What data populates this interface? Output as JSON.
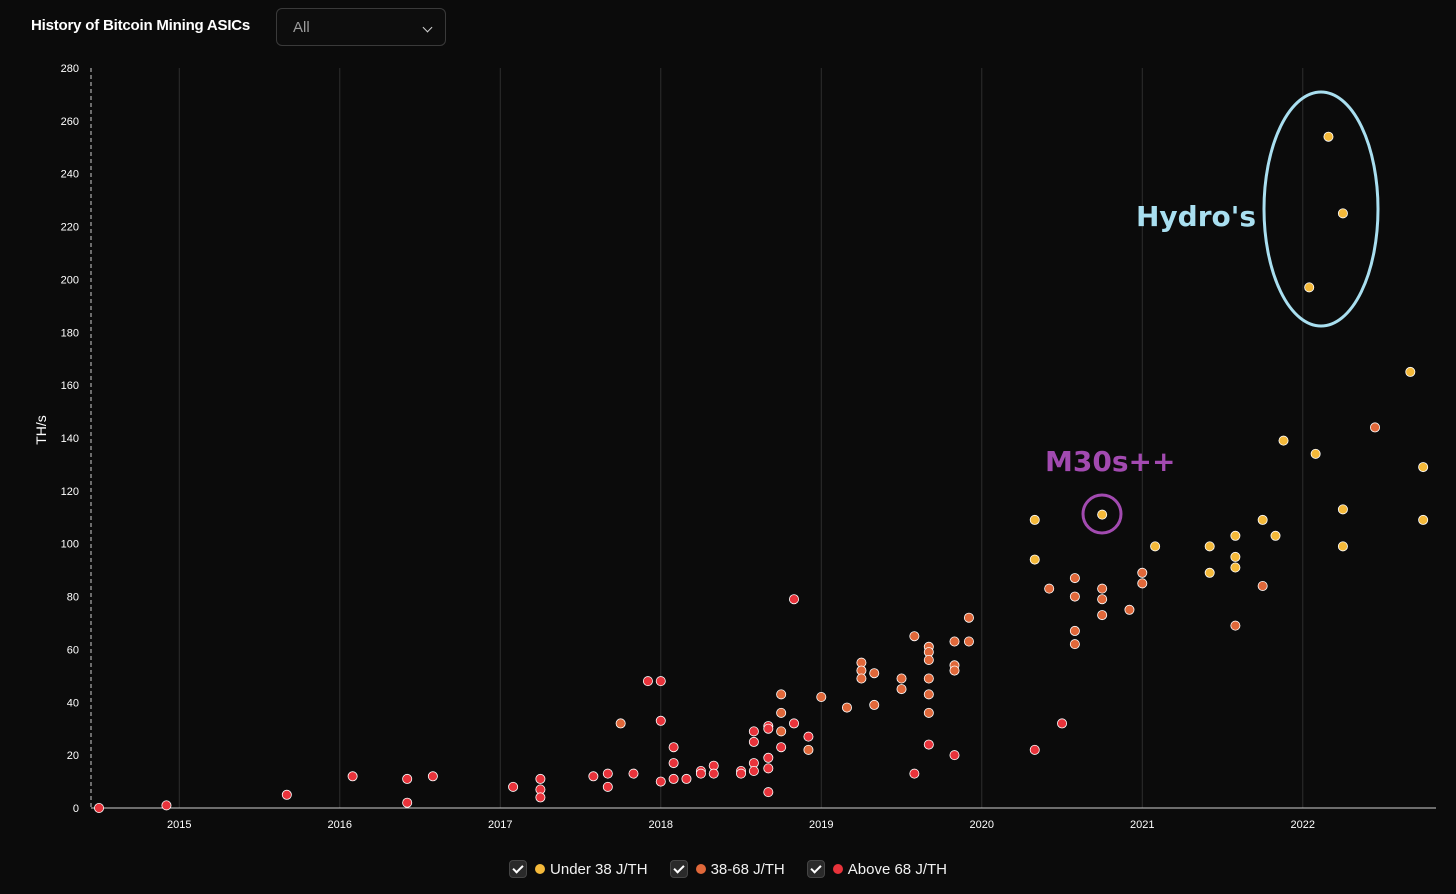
{
  "header": {
    "title": "History of Bitcoin Mining ASICs",
    "filter_value": "All"
  },
  "colors": {
    "background": "#0b0b0b",
    "under38": "#f4b93a",
    "mid": "#e0683a",
    "above68": "#e8333b",
    "hydro_annotation": "#a9dff0",
    "m30_annotation": "#a24ab0"
  },
  "annotations": {
    "hydro_label": "Hydro's",
    "m30_label": "M30s++"
  },
  "legend": {
    "items": [
      {
        "label": "Under 38 J/TH",
        "color": "#f4b93a",
        "checked": true
      },
      {
        "label": "38-68 J/TH",
        "color": "#e0683a",
        "checked": true
      },
      {
        "label": "Above 68 J/TH",
        "color": "#e8333b",
        "checked": true
      }
    ]
  },
  "chart_data": {
    "type": "scatter",
    "title": "History of Bitcoin Mining ASICs",
    "ylabel": "TH/s",
    "xlabel": "",
    "xlim": [
      2014.45,
      2022.83
    ],
    "ylim": [
      0,
      280
    ],
    "x_ticks": [
      2015,
      2016,
      2017,
      2018,
      2019,
      2020,
      2021,
      2022
    ],
    "y_ticks": [
      0,
      20,
      40,
      60,
      80,
      100,
      120,
      140,
      160,
      180,
      200,
      220,
      240,
      260,
      280
    ],
    "grid": "vertical",
    "legend_position": "bottom-center",
    "series": [
      {
        "name": "Under 38 J/TH",
        "color": "#f4b93a",
        "points": [
          [
            2020.33,
            109
          ],
          [
            2020.33,
            94
          ],
          [
            2020.75,
            111
          ],
          [
            2021.08,
            99
          ],
          [
            2021.42,
            99
          ],
          [
            2021.42,
            89
          ],
          [
            2021.58,
            103
          ],
          [
            2021.58,
            95
          ],
          [
            2021.58,
            91
          ],
          [
            2021.75,
            109
          ],
          [
            2021.83,
            103
          ],
          [
            2021.88,
            139
          ],
          [
            2022.08,
            134
          ],
          [
            2022.04,
            197
          ],
          [
            2022.16,
            254
          ],
          [
            2022.25,
            225
          ],
          [
            2022.25,
            113
          ],
          [
            2022.25,
            99
          ],
          [
            2022.67,
            165
          ],
          [
            2022.75,
            129
          ],
          [
            2022.75,
            109
          ]
        ]
      },
      {
        "name": "38-68 J/TH",
        "color": "#e0683a",
        "points": [
          [
            2017.75,
            32
          ],
          [
            2018.75,
            43
          ],
          [
            2018.75,
            36
          ],
          [
            2018.75,
            29
          ],
          [
            2018.92,
            22
          ],
          [
            2019.0,
            42
          ],
          [
            2019.16,
            38
          ],
          [
            2019.25,
            55
          ],
          [
            2019.25,
            52
          ],
          [
            2019.25,
            49
          ],
          [
            2019.33,
            51
          ],
          [
            2019.33,
            39
          ],
          [
            2019.5,
            49
          ],
          [
            2019.5,
            45
          ],
          [
            2019.58,
            65
          ],
          [
            2019.67,
            61
          ],
          [
            2019.67,
            59
          ],
          [
            2019.67,
            56
          ],
          [
            2019.67,
            49
          ],
          [
            2019.67,
            43
          ],
          [
            2019.67,
            36
          ],
          [
            2019.83,
            63
          ],
          [
            2019.83,
            54
          ],
          [
            2019.83,
            52
          ],
          [
            2019.92,
            72
          ],
          [
            2019.92,
            63
          ],
          [
            2020.42,
            83
          ],
          [
            2020.58,
            87
          ],
          [
            2020.58,
            80
          ],
          [
            2020.58,
            67
          ],
          [
            2020.58,
            62
          ],
          [
            2020.75,
            83
          ],
          [
            2020.75,
            79
          ],
          [
            2020.75,
            73
          ],
          [
            2020.92,
            75
          ],
          [
            2021.0,
            89
          ],
          [
            2021.0,
            85
          ],
          [
            2021.58,
            69
          ],
          [
            2021.75,
            84
          ],
          [
            2022.45,
            144
          ]
        ]
      },
      {
        "name": "Above 68 J/TH",
        "color": "#e8333b",
        "points": [
          [
            2014.5,
            0
          ],
          [
            2014.92,
            1
          ],
          [
            2015.67,
            5
          ],
          [
            2016.08,
            12
          ],
          [
            2016.42,
            11
          ],
          [
            2016.42,
            2
          ],
          [
            2016.58,
            12
          ],
          [
            2017.08,
            8
          ],
          [
            2017.25,
            11
          ],
          [
            2017.25,
            7
          ],
          [
            2017.25,
            4
          ],
          [
            2017.58,
            12
          ],
          [
            2017.67,
            13
          ],
          [
            2017.67,
            8
          ],
          [
            2017.83,
            13
          ],
          [
            2017.92,
            48
          ],
          [
            2018.0,
            48
          ],
          [
            2018.0,
            33
          ],
          [
            2018.0,
            10
          ],
          [
            2018.08,
            23
          ],
          [
            2018.08,
            17
          ],
          [
            2018.08,
            11
          ],
          [
            2018.16,
            11
          ],
          [
            2018.25,
            14
          ],
          [
            2018.25,
            13
          ],
          [
            2018.33,
            16
          ],
          [
            2018.33,
            13
          ],
          [
            2018.5,
            14
          ],
          [
            2018.5,
            13
          ],
          [
            2018.58,
            29
          ],
          [
            2018.58,
            25
          ],
          [
            2018.58,
            17
          ],
          [
            2018.58,
            14
          ],
          [
            2018.67,
            31
          ],
          [
            2018.67,
            30
          ],
          [
            2018.67,
            19
          ],
          [
            2018.67,
            15
          ],
          [
            2018.67,
            6
          ],
          [
            2018.75,
            23
          ],
          [
            2018.83,
            79
          ],
          [
            2018.83,
            32
          ],
          [
            2018.92,
            27
          ],
          [
            2019.58,
            13
          ],
          [
            2019.67,
            24
          ],
          [
            2019.83,
            20
          ],
          [
            2020.33,
            22
          ],
          [
            2020.5,
            32
          ]
        ]
      }
    ]
  }
}
